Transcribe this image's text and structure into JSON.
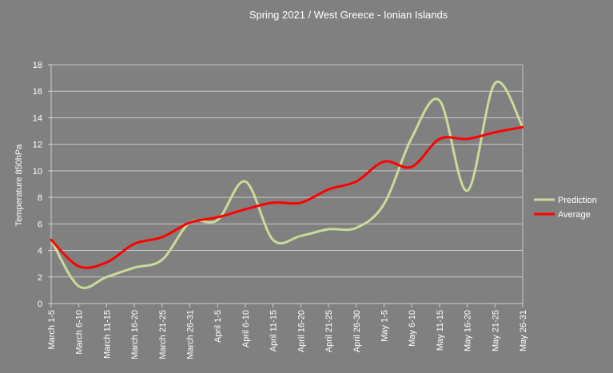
{
  "chart_data": {
    "type": "line",
    "title": "Spring 2021 / West Greece - Ionian Islands",
    "xlabel": "",
    "ylabel": "Temperature 850hPa",
    "categories": [
      "March 1-5",
      "March 6-10",
      "March 11-15",
      "March 16-20",
      "March 21-25",
      "March 26-31",
      "April 1-5",
      "April 6-10",
      "April 11-15",
      "April 16-20",
      "April 21-25",
      "April 26-30",
      "May 1-5",
      "May 6-10",
      "May 11-15",
      "May 16-20",
      "May 21-25",
      "May 26-31"
    ],
    "ylim": [
      0,
      18
    ],
    "yticks": [
      0,
      2,
      4,
      6,
      8,
      10,
      12,
      14,
      16,
      18
    ],
    "grid": true,
    "legend": "right",
    "series": [
      {
        "name": "Prediction",
        "color": "#c8dc9a",
        "values": [
          4.8,
          1.3,
          2.0,
          2.7,
          3.3,
          6.1,
          6.3,
          9.2,
          4.8,
          5.1,
          5.6,
          5.7,
          7.5,
          12.5,
          15.3,
          8.5,
          16.6,
          13.3
        ]
      },
      {
        "name": "Average",
        "color": "#ff0000",
        "values": [
          4.8,
          2.8,
          3.1,
          4.5,
          5.0,
          6.1,
          6.5,
          7.1,
          7.6,
          7.6,
          8.6,
          9.2,
          10.7,
          10.3,
          12.4,
          12.4,
          12.9,
          13.3
        ]
      }
    ]
  }
}
